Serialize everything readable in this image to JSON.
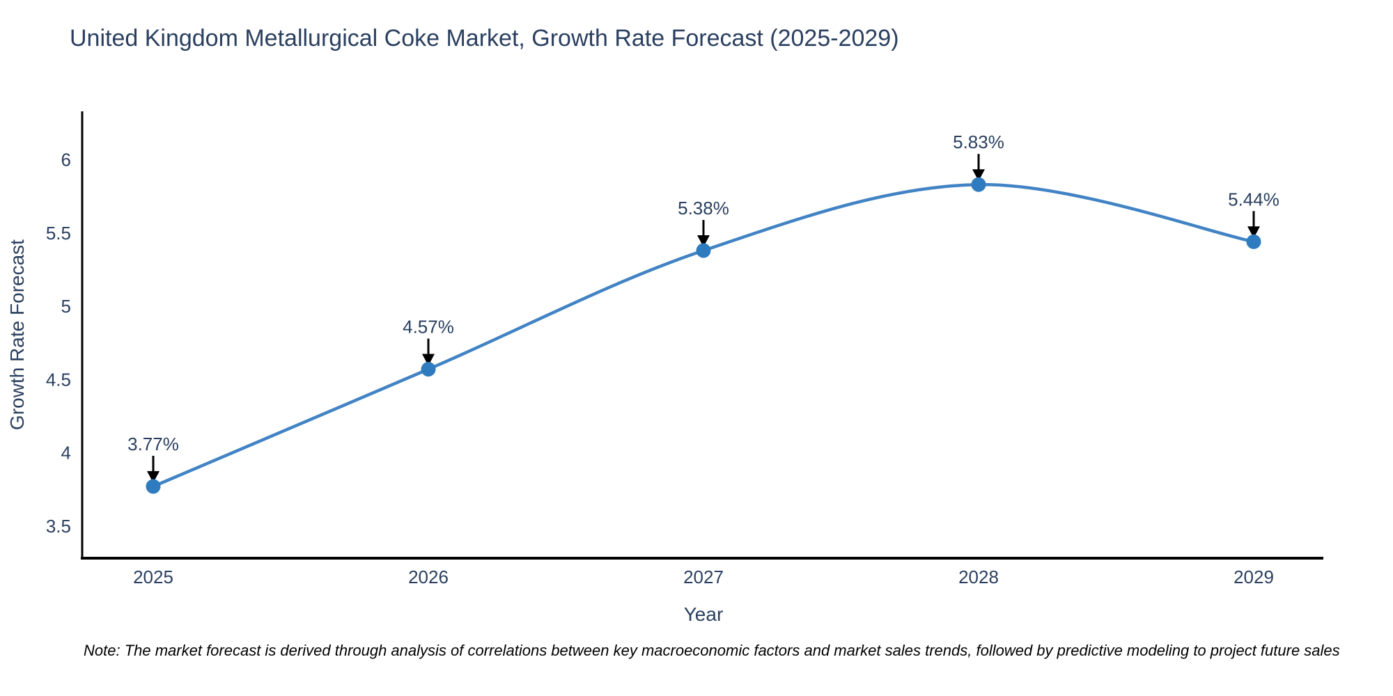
{
  "chart_data": {
    "type": "line",
    "title": "United Kingdom Metallurgical Coke Market, Growth Rate Forecast (2025-2029)",
    "xlabel": "Year",
    "ylabel": "Growth Rate Forecast",
    "x": [
      2025,
      2026,
      2027,
      2028,
      2029
    ],
    "values": [
      3.77,
      4.57,
      5.38,
      5.83,
      5.44
    ],
    "point_labels": [
      "3.77%",
      "4.57%",
      "5.38%",
      "5.83%",
      "5.44%"
    ],
    "yticks": [
      3.5,
      4,
      4.5,
      5,
      5.5,
      6
    ],
    "ylim": [
      3.28,
      6.33
    ],
    "line_shape": "spline",
    "markers": true,
    "grid": false,
    "legend": "none",
    "annotations": "value label with downward black arrow above each data point",
    "note": "Note: The market forecast is derived through analysis of correlations between key macroeconomic factors and market sales trends, followed by predictive modeling to project future sales",
    "colors": {
      "line": "#4183c4",
      "marker": "#2f7bbf",
      "text": "#2a3f5f",
      "axis": "#000000",
      "arrow": "#000000",
      "note_text": "#000000",
      "background": "#ffffff"
    }
  }
}
